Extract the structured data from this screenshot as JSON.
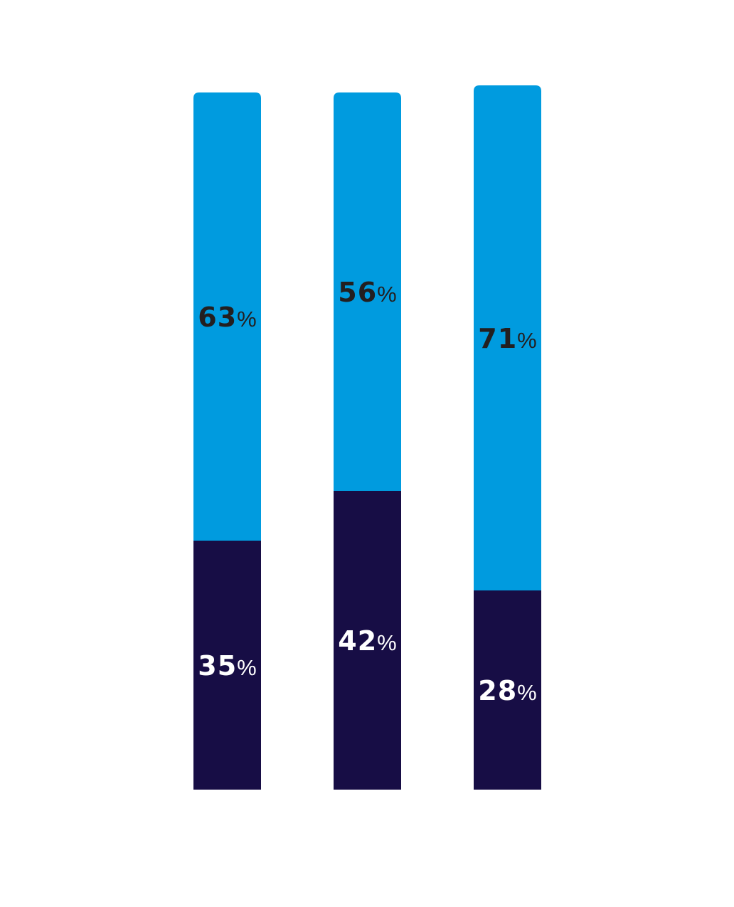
{
  "chart_data": {
    "type": "bar",
    "stacked": true,
    "title": "",
    "xlabel": "",
    "ylabel": "",
    "categories": [
      "",
      "",
      ""
    ],
    "ylim": [
      0,
      100
    ],
    "grid": false,
    "legend": "none",
    "series": [
      {
        "values": [
          35,
          42,
          28
        ],
        "labels": [
          "35",
          "42",
          "28"
        ],
        "color": "#170d45",
        "label_color": "#ffffff"
      },
      {
        "values": [
          63,
          56,
          71
        ],
        "labels": [
          "63",
          "56",
          "71"
        ],
        "color": "#009bdf",
        "label_color": "#231f20"
      }
    ],
    "unit_symbol": "%"
  }
}
